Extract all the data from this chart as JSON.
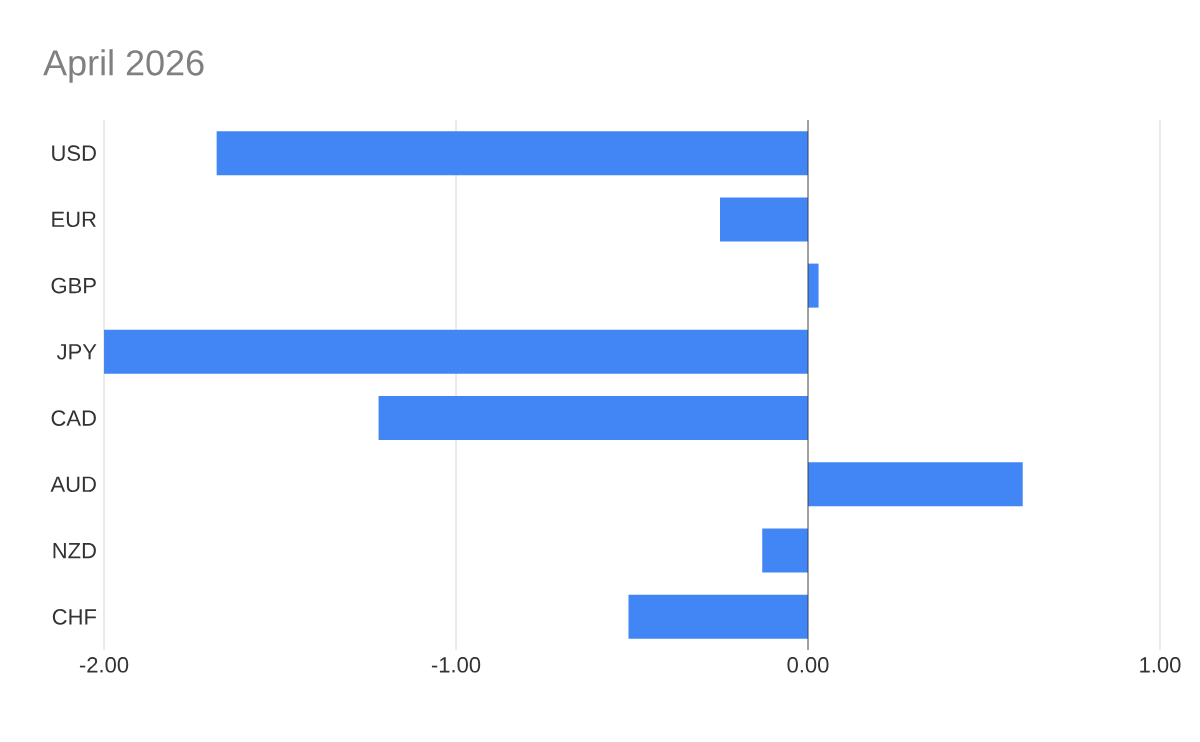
{
  "chart_data": {
    "type": "bar",
    "orientation": "horizontal",
    "title": "April 2026",
    "categories": [
      "USD",
      "EUR",
      "GBP",
      "JPY",
      "CAD",
      "AUD",
      "NZD",
      "CHF"
    ],
    "values": [
      -1.68,
      -0.25,
      0.03,
      -2.0,
      -1.22,
      0.61,
      -0.13,
      -0.51
    ],
    "color": "#4285f4",
    "xlim": [
      -2,
      1
    ],
    "xticks": [
      {
        "value": -2,
        "label": "-2.00"
      },
      {
        "value": -1,
        "label": "-1.00"
      },
      {
        "value": 0,
        "label": "0.00"
      },
      {
        "value": 1,
        "label": "1.00"
      }
    ],
    "grid": "x"
  }
}
